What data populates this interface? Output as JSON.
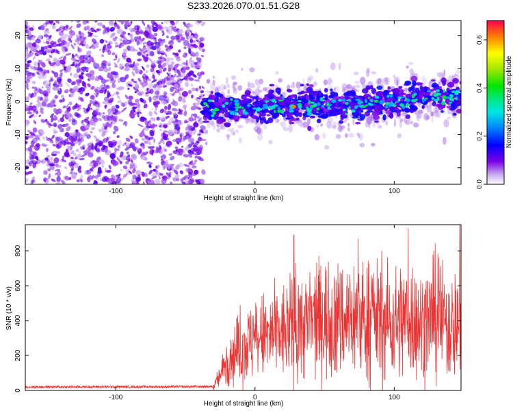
{
  "figure_title": "S233.2026.070.01.51.G28",
  "chart_data": [
    {
      "type": "heatmap",
      "title": "S233.2026.070.01.51.G28",
      "xlabel": "Height of straight line (km)",
      "ylabel": "Frequency (Hz)",
      "xlim": [
        -165,
        148
      ],
      "ylim": [
        -25,
        24.5
      ],
      "x_ticks": [
        "-100",
        "0",
        "100"
      ],
      "x_tick_values": [
        -100,
        0,
        100
      ],
      "y_ticks": [
        "-20",
        "-10",
        "0",
        "10",
        "20"
      ],
      "y_tick_values": [
        -20,
        -10,
        0,
        10,
        20
      ],
      "noise_region_x": [
        -165,
        -37
      ],
      "signal_center_frequency": [
        {
          "x": -37,
          "y": -2
        },
        {
          "x": 0,
          "y": -1.5
        },
        {
          "x": 30,
          "y": -1
        },
        {
          "x": 60,
          "y": -1.5
        },
        {
          "x": 100,
          "y": 0
        },
        {
          "x": 130,
          "y": 2
        },
        {
          "x": 148,
          "y": 1
        }
      ],
      "colorbar": {
        "label": "Normalized spectral amplitude",
        "range": [
          0.0,
          0.68
        ],
        "ticks": [
          "0.0",
          "0.2",
          "0.4",
          "0.6"
        ],
        "tick_values": [
          0.0,
          0.2,
          0.4,
          0.6
        ],
        "colormap": "rainbow"
      }
    },
    {
      "type": "line",
      "xlabel": "Height of straight line (km)",
      "ylabel": "SNR (10 * v/v)",
      "xlim": [
        -165,
        148
      ],
      "ylim": [
        0,
        950
      ],
      "x_ticks": [
        "-100",
        "0",
        "100"
      ],
      "x_tick_values": [
        -100,
        0,
        100
      ],
      "y_ticks": [
        "0",
        "200",
        "400",
        "600",
        "800"
      ],
      "y_tick_values": [
        0,
        200,
        400,
        600,
        800
      ],
      "series": [
        {
          "name": "SNR",
          "color": "#ee3333",
          "envelope_x": [
            -165,
            -30,
            -25,
            -20,
            -10,
            0,
            10,
            20,
            30,
            40,
            50,
            60,
            70,
            80,
            90,
            100,
            110,
            120,
            130,
            140,
            148
          ],
          "envelope_mean": [
            20,
            22,
            80,
            180,
            240,
            290,
            310,
            330,
            360,
            390,
            410,
            400,
            420,
            410,
            400,
            380,
            420,
            380,
            420,
            360,
            400
          ],
          "peak_values": [
            {
              "x": 28,
              "y": 890
            },
            {
              "x": 74,
              "y": 870
            },
            {
              "x": 110,
              "y": 930
            },
            {
              "x": 147,
              "y": 950
            }
          ]
        }
      ]
    }
  ]
}
